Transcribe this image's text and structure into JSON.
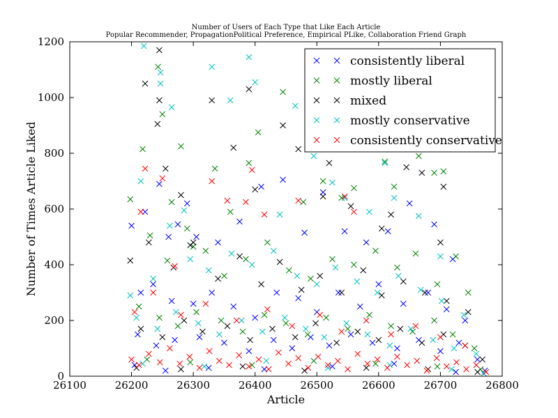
{
  "chart_data": {
    "type": "scatter",
    "title": "Number of Users of Each Type that Like Each Article",
    "subtitle": "Popular Recommender, PropagationPolitical Preference, Empirical PLike, Collaboration Friend Graph",
    "xlabel": "Article",
    "ylabel": "Number of Times Article Liked",
    "xlim": [
      26100,
      26800
    ],
    "ylim": [
      0,
      1200
    ],
    "xticks": [
      "26100",
      "26200",
      "26300",
      "26400",
      "26500",
      "26600",
      "26700",
      "26800"
    ],
    "yticks": [
      "0",
      "200",
      "400",
      "600",
      "800",
      "1000",
      "1200"
    ],
    "legend_position": "top-right",
    "marker": "x",
    "point_count_note": "",
    "series": [
      {
        "name": "consistently liberal",
        "color": "#0000ff",
        "points": [
          [
            26200,
            540
          ],
          [
            26222,
            590
          ],
          [
            26245,
            690
          ],
          [
            26260,
            500
          ],
          [
            26275,
            545
          ],
          [
            26290,
            620
          ],
          [
            26305,
            500
          ],
          [
            26340,
            480
          ],
          [
            26375,
            555
          ],
          [
            26410,
            680
          ],
          [
            26445,
            705
          ],
          [
            26480,
            515
          ],
          [
            26510,
            660
          ],
          [
            26545,
            520
          ],
          [
            26580,
            480
          ],
          [
            26615,
            520
          ],
          [
            26650,
            620
          ],
          [
            26690,
            545
          ],
          [
            26720,
            420
          ],
          [
            26215,
            300
          ],
          [
            26235,
            330
          ],
          [
            26265,
            270
          ],
          [
            26300,
            260
          ],
          [
            26330,
            300
          ],
          [
            26365,
            250
          ],
          [
            26400,
            210
          ],
          [
            26435,
            300
          ],
          [
            26470,
            280
          ],
          [
            26500,
            230
          ],
          [
            26535,
            300
          ],
          [
            26570,
            250
          ],
          [
            26600,
            330
          ],
          [
            26640,
            260
          ],
          [
            26680,
            300
          ],
          [
            26710,
            240
          ],
          [
            26740,
            200
          ],
          [
            26210,
            150
          ],
          [
            26240,
            110
          ],
          [
            26270,
            130
          ],
          [
            26310,
            140
          ],
          [
            26350,
            120
          ],
          [
            26390,
            90
          ],
          [
            26430,
            130
          ],
          [
            26460,
            100
          ],
          [
            26490,
            140
          ],
          [
            26520,
            110
          ],
          [
            26555,
            150
          ],
          [
            26590,
            120
          ],
          [
            26630,
            100
          ],
          [
            26665,
            130
          ],
          [
            26700,
            90
          ],
          [
            26730,
            120
          ],
          [
            26760,
            60
          ],
          [
            26205,
            40
          ],
          [
            26255,
            20
          ],
          [
            26325,
            30
          ],
          [
            26415,
            25
          ],
          [
            26525,
            35
          ],
          [
            26625,
            45
          ],
          [
            26725,
            15
          ],
          [
            26772,
            20
          ]
        ]
      },
      {
        "name": "mostly liberal",
        "color": "#008000",
        "points": [
          [
            26198,
            635
          ],
          [
            26218,
            815
          ],
          [
            26243,
            1110
          ],
          [
            26250,
            940
          ],
          [
            26265,
            625
          ],
          [
            26280,
            825
          ],
          [
            26300,
            465
          ],
          [
            26335,
            745
          ],
          [
            26360,
            590
          ],
          [
            26390,
            765
          ],
          [
            26405,
            875
          ],
          [
            26445,
            1020
          ],
          [
            26478,
            625
          ],
          [
            26510,
            700
          ],
          [
            26540,
            640
          ],
          [
            26560,
            675
          ],
          [
            26610,
            770
          ],
          [
            26625,
            680
          ],
          [
            26665,
            790
          ],
          [
            26690,
            730
          ],
          [
            26705,
            735
          ],
          [
            26230,
            505
          ],
          [
            26258,
            415
          ],
          [
            26290,
            530
          ],
          [
            26320,
            450
          ],
          [
            26350,
            360
          ],
          [
            26385,
            420
          ],
          [
            26420,
            480
          ],
          [
            26455,
            380
          ],
          [
            26490,
            350
          ],
          [
            26525,
            420
          ],
          [
            26560,
            400
          ],
          [
            26595,
            450
          ],
          [
            26630,
            390
          ],
          [
            26660,
            440
          ],
          [
            26695,
            330
          ],
          [
            26725,
            430
          ],
          [
            26745,
            300
          ],
          [
            26212,
            250
          ],
          [
            26245,
            210
          ],
          [
            26275,
            180
          ],
          [
            26305,
            230
          ],
          [
            26345,
            200
          ],
          [
            26380,
            160
          ],
          [
            26415,
            220
          ],
          [
            26450,
            190
          ],
          [
            26485,
            150
          ],
          [
            26515,
            210
          ],
          [
            26550,
            170
          ],
          [
            26585,
            220
          ],
          [
            26620,
            180
          ],
          [
            26655,
            160
          ],
          [
            26690,
            200
          ],
          [
            26720,
            150
          ],
          [
            26755,
            100
          ],
          [
            26225,
            60
          ],
          [
            26295,
            50
          ],
          [
            26395,
            40
          ],
          [
            26495,
            55
          ],
          [
            26595,
            45
          ],
          [
            26695,
            35
          ],
          [
            26765,
            25
          ]
        ]
      },
      {
        "name": "mixed",
        "color": "#000000",
        "points": [
          [
            26198,
            415
          ],
          [
            26222,
            1050
          ],
          [
            26245,
            1170
          ],
          [
            26245,
            990
          ],
          [
            26242,
            905
          ],
          [
            26255,
            745
          ],
          [
            26280,
            650
          ],
          [
            26295,
            470
          ],
          [
            26330,
            990
          ],
          [
            26365,
            820
          ],
          [
            26390,
            1030
          ],
          [
            26400,
            670
          ],
          [
            26445,
            900
          ],
          [
            26470,
            815
          ],
          [
            26510,
            645
          ],
          [
            26520,
            765
          ],
          [
            26555,
            610
          ],
          [
            26605,
            530
          ],
          [
            26620,
            580
          ],
          [
            26645,
            750
          ],
          [
            26670,
            730
          ],
          [
            26700,
            480
          ],
          [
            26705,
            680
          ],
          [
            26228,
            480
          ],
          [
            26268,
            390
          ],
          [
            26300,
            480
          ],
          [
            26340,
            350
          ],
          [
            26375,
            430
          ],
          [
            26410,
            330
          ],
          [
            26440,
            410
          ],
          [
            26475,
            310
          ],
          [
            26505,
            360
          ],
          [
            26540,
            300
          ],
          [
            26575,
            380
          ],
          [
            26605,
            290
          ],
          [
            26640,
            340
          ],
          [
            26675,
            300
          ],
          [
            26710,
            270
          ],
          [
            26745,
            230
          ],
          [
            26215,
            170
          ],
          [
            26250,
            140
          ],
          [
            26285,
            200
          ],
          [
            26315,
            160
          ],
          [
            26355,
            180
          ],
          [
            26392,
            130
          ],
          [
            26428,
            170
          ],
          [
            26465,
            140
          ],
          [
            26498,
            190
          ],
          [
            26532,
            120
          ],
          [
            26566,
            160
          ],
          [
            26600,
            130
          ],
          [
            26635,
            170
          ],
          [
            26670,
            120
          ],
          [
            26705,
            150
          ],
          [
            26740,
            110
          ],
          [
            26768,
            60
          ],
          [
            26208,
            30
          ],
          [
            26280,
            25
          ],
          [
            26380,
            35
          ],
          [
            26480,
            20
          ],
          [
            26580,
            30
          ],
          [
            26680,
            25
          ],
          [
            26760,
            15
          ]
        ]
      },
      {
        "name": "mostly conservative",
        "color": "#00bfbf",
        "points": [
          [
            26198,
            290
          ],
          [
            26220,
            1185
          ],
          [
            26247,
            1090
          ],
          [
            26247,
            1050
          ],
          [
            26265,
            965
          ],
          [
            26285,
            595
          ],
          [
            26330,
            1110
          ],
          [
            26360,
            990
          ],
          [
            26390,
            1145
          ],
          [
            26400,
            1055
          ],
          [
            26440,
            580
          ],
          [
            26465,
            970
          ],
          [
            26495,
            790
          ],
          [
            26525,
            695
          ],
          [
            26545,
            640
          ],
          [
            26585,
            590
          ],
          [
            26610,
            765
          ],
          [
            26625,
            640
          ],
          [
            26665,
            575
          ],
          [
            26700,
            430
          ],
          [
            26215,
            700
          ],
          [
            26235,
            350
          ],
          [
            26262,
            540
          ],
          [
            26295,
            420
          ],
          [
            26325,
            380
          ],
          [
            26362,
            440
          ],
          [
            26395,
            400
          ],
          [
            26430,
            450
          ],
          [
            26468,
            360
          ],
          [
            26500,
            330
          ],
          [
            26530,
            390
          ],
          [
            26565,
            340
          ],
          [
            26598,
            300
          ],
          [
            26632,
            360
          ],
          [
            26668,
            310
          ],
          [
            26702,
            270
          ],
          [
            26738,
            220
          ],
          [
            26208,
            210
          ],
          [
            26242,
            170
          ],
          [
            26272,
            230
          ],
          [
            26308,
            190
          ],
          [
            26342,
            150
          ],
          [
            26378,
            200
          ],
          [
            26412,
            160
          ],
          [
            26448,
            210
          ],
          [
            26482,
            170
          ],
          [
            26512,
            140
          ],
          [
            26548,
            190
          ],
          [
            26582,
            150
          ],
          [
            26618,
            110
          ],
          [
            26652,
            170
          ],
          [
            26688,
            130
          ],
          [
            26722,
            100
          ],
          [
            26758,
            80
          ],
          [
            26218,
            45
          ],
          [
            26318,
            35
          ],
          [
            26418,
            55
          ],
          [
            26518,
            30
          ],
          [
            26618,
            40
          ],
          [
            26718,
            25
          ],
          [
            26770,
            10
          ]
        ]
      },
      {
        "name": "consistently conservative",
        "color": "#ff0000",
        "points": [
          [
            26205,
            230
          ],
          [
            26215,
            590
          ],
          [
            26222,
            745
          ],
          [
            26250,
            710
          ],
          [
            26270,
            395
          ],
          [
            26330,
            700
          ],
          [
            26355,
            630
          ],
          [
            26385,
            625
          ],
          [
            26395,
            740
          ],
          [
            26415,
            580
          ],
          [
            26470,
            630
          ],
          [
            26545,
            645
          ],
          [
            26560,
            590
          ],
          [
            26235,
            300
          ],
          [
            26280,
            220
          ],
          [
            26320,
            260
          ],
          [
            26370,
            200
          ],
          [
            26420,
            240
          ],
          [
            26460,
            180
          ],
          [
            26505,
            220
          ],
          [
            26540,
            160
          ],
          [
            26580,
            200
          ],
          [
            26620,
            150
          ],
          [
            26660,
            180
          ],
          [
            26700,
            140
          ],
          [
            26740,
            110
          ],
          [
            26200,
            60
          ],
          [
            26212,
            40
          ],
          [
            26228,
            80
          ],
          [
            26246,
            50
          ],
          [
            26262,
            100
          ],
          [
            26278,
            45
          ],
          [
            26294,
            70
          ],
          [
            26310,
            30
          ],
          [
            26326,
            90
          ],
          [
            26342,
            55
          ],
          [
            26358,
            40
          ],
          [
            26374,
            75
          ],
          [
            26390,
            35
          ],
          [
            26406,
            60
          ],
          [
            26422,
            25
          ],
          [
            26438,
            85
          ],
          [
            26454,
            45
          ],
          [
            26470,
            65
          ],
          [
            26486,
            30
          ],
          [
            26502,
            70
          ],
          [
            26518,
            40
          ],
          [
            26534,
            55
          ],
          [
            26550,
            25
          ],
          [
            26566,
            80
          ],
          [
            26582,
            45
          ],
          [
            26598,
            60
          ],
          [
            26614,
            30
          ],
          [
            26630,
            70
          ],
          [
            26646,
            40
          ],
          [
            26662,
            55
          ],
          [
            26678,
            20
          ],
          [
            26694,
            65
          ],
          [
            26710,
            35
          ],
          [
            26726,
            50
          ],
          [
            26742,
            25
          ],
          [
            26758,
            40
          ],
          [
            26774,
            15
          ]
        ]
      }
    ]
  }
}
